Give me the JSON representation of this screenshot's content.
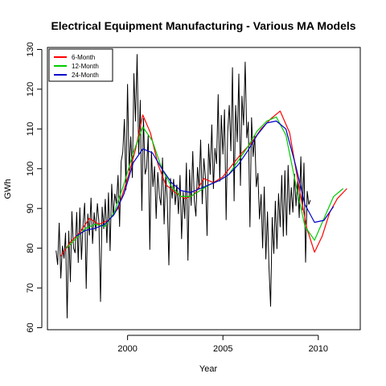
{
  "chart_data": {
    "type": "line",
    "title": "Electrical Equipment Manufacturing - Various MA Models",
    "xlabel": "Year",
    "ylabel": "GWh",
    "xlim": [
      1995.8,
      2012.2
    ],
    "ylim": [
      59.5,
      130.5
    ],
    "x_ticks": [
      2000,
      2005,
      2010
    ],
    "y_ticks": [
      60,
      70,
      80,
      90,
      100,
      110,
      120,
      130
    ],
    "grid": false,
    "legend_position": "top-left",
    "raw_series": {
      "color": "#000000",
      "start": 1996.25,
      "step": 0.0833333,
      "values": [
        79.4,
        75.8,
        86.4,
        72.4,
        80.6,
        77.4,
        83.9,
        62.4,
        84.4,
        71.5,
        89.3,
        80.1,
        78.8,
        89.1,
        76.3,
        90.2,
        77.1,
        86.2,
        91.4,
        69.8,
        88.7,
        83.2,
        92.7,
        81.1,
        89.0,
        84.3,
        91.3,
        86.5,
        66.5,
        90.4,
        84.8,
        92.4,
        81.3,
        94.0,
        79.3,
        96.2,
        88.0,
        93.7,
        91.2,
        98.4,
        85.4,
        101.9,
        104.1,
        112.5,
        94.6,
        121.3,
        99.5,
        108.1,
        97.7,
        124.0,
        111.9,
        128.8,
        103.5,
        117.3,
        89.4,
        112.7,
        98.6,
        100.2,
        108.4,
        79.6,
        104.4,
        95.4,
        100.6,
        87.4,
        99.1,
        93.2,
        90.8,
        102.8,
        86.0,
        98.4,
        92.1,
        75.7,
        97.6,
        92.5,
        97.4,
        90.9,
        96.0,
        88.6,
        98.4,
        82.3,
        94.2,
        87.4,
        101.5,
        76.9,
        99.8,
        90.7,
        104.4,
        92.1,
        88.0,
        100.4,
        94.9,
        107.3,
        91.1,
        102.6,
        97.6,
        83.1,
        106.3,
        98.5,
        111.1,
        94.9,
        105.2,
        101.2,
        118.7,
        96.8,
        113.5,
        103.6,
        114.9,
        87.1,
        109.0,
        116.0,
        104.4,
        125.5,
        91.8,
        116.0,
        106.7,
        123.9,
        95.7,
        118.3,
        110.9,
        126.9,
        107.7,
        111.8,
        85.3,
        112.9,
        103.0,
        108.3,
        95.4,
        98.9,
        87.3,
        93.6,
        80.0,
        95.5,
        77.2,
        89.2,
        75.2,
        65.3,
        87.8,
        78.6,
        91.9,
        79.8,
        93.8,
        85.3,
        98.4,
        82.9,
        99.6,
        83.2,
        100.9,
        88.4,
        95.3,
        89.0,
        98.7,
        90.6,
        96.8,
        87.6,
        103.1,
        89.6,
        101.5,
        76.4,
        94.4,
        91.0,
        92.1
      ]
    },
    "series": [
      {
        "name": "6-Month",
        "color": "#ff0000",
        "x": [
          1996.5,
          1997.0,
          1997.5,
          1998.0,
          1998.5,
          1999.0,
          1999.5,
          2000.0,
          2000.4,
          2000.8,
          2001.2,
          2001.6,
          2002.0,
          2002.5,
          2003.0,
          2003.5,
          2004.0,
          2004.5,
          2005.0,
          2005.5,
          2006.0,
          2006.5,
          2007.0,
          2007.5,
          2008.0,
          2008.5,
          2009.0,
          2009.4,
          2009.8,
          2010.2,
          2010.6,
          2011.0,
          2011.5
        ],
        "y": [
          78.0,
          81.5,
          84.0,
          87.5,
          86.0,
          87.0,
          90.0,
          97.5,
          104.5,
          113.5,
          109.0,
          101.0,
          96.0,
          94.0,
          92.5,
          93.5,
          97.5,
          96.5,
          98.0,
          101.0,
          104.0,
          106.5,
          110.0,
          112.5,
          114.5,
          109.0,
          95.0,
          85.0,
          79.0,
          83.0,
          89.0,
          92.5,
          95.0
        ]
      },
      {
        "name": "12-Month",
        "color": "#00cc00",
        "x": [
          1996.8,
          1997.3,
          1997.8,
          1998.3,
          1998.8,
          1999.3,
          1999.8,
          2000.3,
          2000.8,
          2001.3,
          2001.8,
          2002.3,
          2002.8,
          2003.3,
          2003.8,
          2004.3,
          2004.8,
          2005.3,
          2005.8,
          2006.3,
          2006.8,
          2007.3,
          2007.8,
          2008.3,
          2008.8,
          2009.3,
          2009.8,
          2010.3,
          2010.8,
          2011.3
        ],
        "y": [
          80.0,
          82.5,
          85.0,
          86.0,
          85.5,
          89.0,
          96.0,
          104.0,
          110.5,
          107.0,
          100.0,
          95.5,
          93.0,
          93.0,
          94.5,
          96.0,
          97.0,
          98.5,
          102.0,
          105.5,
          109.5,
          112.0,
          113.0,
          108.5,
          96.5,
          85.5,
          82.0,
          87.5,
          93.0,
          95.0
        ]
      },
      {
        "name": "24-Month",
        "color": "#0000cc",
        "x": [
          1997.3,
          1997.8,
          1998.3,
          1998.8,
          1999.3,
          1999.8,
          2000.3,
          2000.8,
          2001.3,
          2001.8,
          2002.3,
          2002.8,
          2003.3,
          2003.8,
          2004.3,
          2004.8,
          2005.3,
          2005.8,
          2006.3,
          2006.8,
          2007.3,
          2007.8,
          2008.3,
          2008.8,
          2009.3,
          2009.8,
          2010.3,
          2010.8
        ],
        "y": [
          83.0,
          84.5,
          85.0,
          86.0,
          88.5,
          93.5,
          101.5,
          105.0,
          104.0,
          100.0,
          96.5,
          94.5,
          94.0,
          95.0,
          96.0,
          97.0,
          98.5,
          101.0,
          104.5,
          108.5,
          111.5,
          112.0,
          110.0,
          101.0,
          91.0,
          86.5,
          87.0,
          90.5
        ]
      }
    ]
  }
}
